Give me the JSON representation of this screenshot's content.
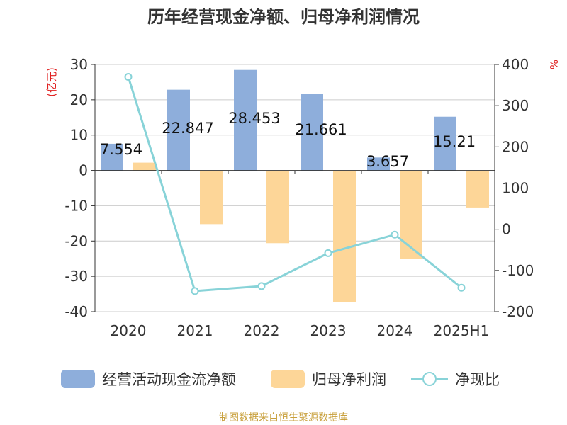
{
  "chart_data": {
    "type": "bar",
    "title": "历年经营现金净额、归母净利润情况",
    "left_axis": {
      "unit_label": "(亿元)",
      "min": -40,
      "max": 30,
      "ticks": [
        "30",
        "20",
        "10",
        "0",
        "-10",
        "-20",
        "-30",
        "-40"
      ],
      "tick_values": [
        30,
        20,
        10,
        0,
        -10,
        -20,
        -30,
        -40
      ]
    },
    "right_axis": {
      "unit_label": "%",
      "min": -200,
      "max": 400,
      "ticks": [
        "400",
        "300",
        "200",
        "100",
        "0",
        "-100",
        "-200"
      ],
      "tick_values": [
        400,
        300,
        200,
        100,
        0,
        -100,
        -200
      ]
    },
    "categories": [
      "2020",
      "2021",
      "2022",
      "2023",
      "2024",
      "2025H1"
    ],
    "series": [
      {
        "name": "经营活动现金流净额",
        "type": "bar",
        "axis": "left",
        "color": "#8eaedb",
        "values": [
          7.554,
          22.847,
          28.453,
          21.661,
          3.657,
          15.21
        ],
        "labels": [
          "7.554",
          "22.847",
          "28.453",
          "21.661",
          "3.657",
          "15.21"
        ]
      },
      {
        "name": "归母净利润",
        "type": "bar",
        "axis": "left",
        "color": "#fdd698",
        "values": [
          2.2,
          -15.2,
          -20.6,
          -37.3,
          -25.0,
          -10.5
        ]
      },
      {
        "name": "净现比",
        "type": "line",
        "axis": "right",
        "color": "#88d3d8",
        "values": [
          370,
          -150,
          -138,
          -58,
          -13,
          -142
        ]
      }
    ],
    "grid": true,
    "legend_position": "bottom"
  },
  "footer": {
    "source_text": "制图数据来自恒生聚源数据库",
    "source_color": "#c8a03c"
  }
}
